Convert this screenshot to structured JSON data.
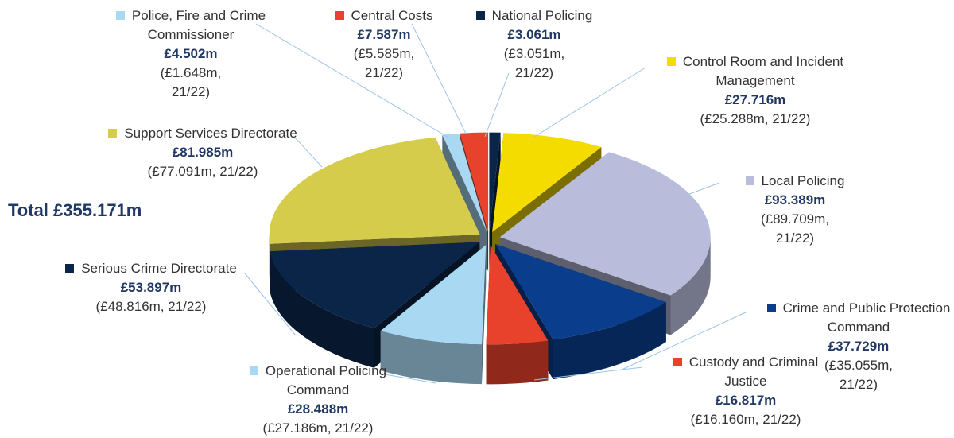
{
  "chart_data": {
    "type": "pie",
    "annotation": "Total £355.171m",
    "categories": [
      "National Policing",
      "Control Room and Incident Management",
      "Local Policing",
      "Crime and Public Protection Command",
      "Custody and Criminal Justice",
      "Operational Policing Command",
      "Serious Crime Directorate",
      "Support Services Directorate",
      "Police, Fire and Crime Commissioner",
      "Central Costs"
    ],
    "values": [
      3.061,
      27.716,
      93.389,
      37.729,
      16.817,
      28.488,
      53.897,
      81.985,
      4.502,
      7.587
    ],
    "value_labels": [
      "£3.061m",
      "£27.716m",
      "£93.389m",
      "£37.729m",
      "£16.817m",
      "£28.488m",
      "£53.897m",
      "£81.985m",
      "£4.502m",
      "£7.587m"
    ],
    "prior_labels": [
      "(£3.051m, 21/22)",
      "(£25.288m, 21/22)",
      "(£89.709m, 21/22)",
      "(£35.055m, 21/22)",
      "(£16.160m, 21/22)",
      "(£27.186m, 21/22)",
      "(£48.816m, 21/22)",
      "(£77.091m, 21/22)",
      "(£1.648m, 21/22)",
      "(£5.585m, 21/22)"
    ],
    "colors": [
      "#0b2548",
      "#f5dc00",
      "#b9bddb",
      "#0a3d8c",
      "#e8412c",
      "#a9d8f2",
      "#0b2548",
      "#d6cc4c",
      "#a9d8f2",
      "#e8412c"
    ]
  }
}
